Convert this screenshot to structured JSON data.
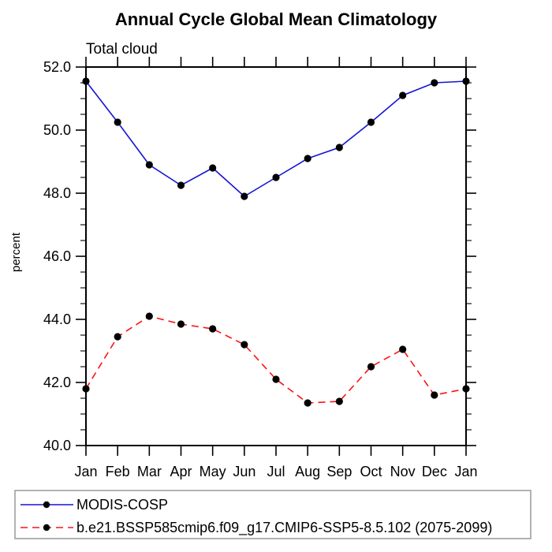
{
  "title": "Annual Cycle Global Mean Climatology",
  "subtitle": "Total cloud",
  "colors": {
    "axis": "#000000",
    "marker": "#000000",
    "series1_blue": "#1515d2",
    "series2_red": "#fb1414",
    "legend_border": "#999999",
    "background": "#ffffff"
  },
  "chart_data": {
    "type": "line",
    "title": "Annual Cycle Global Mean Climatology",
    "subtitle": "Total cloud",
    "xlabel": "",
    "ylabel": "percent",
    "categories": [
      "Jan",
      "Feb",
      "Mar",
      "Apr",
      "May",
      "Jun",
      "Jul",
      "Aug",
      "Sep",
      "Oct",
      "Nov",
      "Dec",
      "Jan"
    ],
    "ylim": [
      40.0,
      52.0
    ],
    "ytick_interval": 2.0,
    "yminor_interval": 0.5,
    "ytick_labels": [
      "40.0",
      "42.0",
      "44.0",
      "46.0",
      "48.0",
      "50.0",
      "52.0"
    ],
    "grid": false,
    "legend_position": "bottom",
    "series": [
      {
        "name": "MODIS-COSP",
        "color": "#1515d2",
        "line_style": "solid",
        "marker": "filled-circle",
        "marker_color": "#000000",
        "values": [
          51.55,
          50.25,
          48.9,
          48.25,
          48.8,
          47.9,
          48.5,
          49.1,
          49.45,
          50.25,
          51.1,
          51.5,
          51.55
        ]
      },
      {
        "name": "b.e21.BSSP585cmip6.f09_g17.CMIP6-SSP5-8.5.102 (2075-2099)",
        "color": "#fb1414",
        "line_style": "dashed",
        "marker": "filled-circle",
        "marker_color": "#000000",
        "values": [
          41.8,
          43.45,
          44.1,
          43.85,
          43.7,
          43.2,
          42.1,
          41.35,
          41.4,
          42.5,
          43.05,
          41.6,
          41.8
        ]
      }
    ]
  }
}
